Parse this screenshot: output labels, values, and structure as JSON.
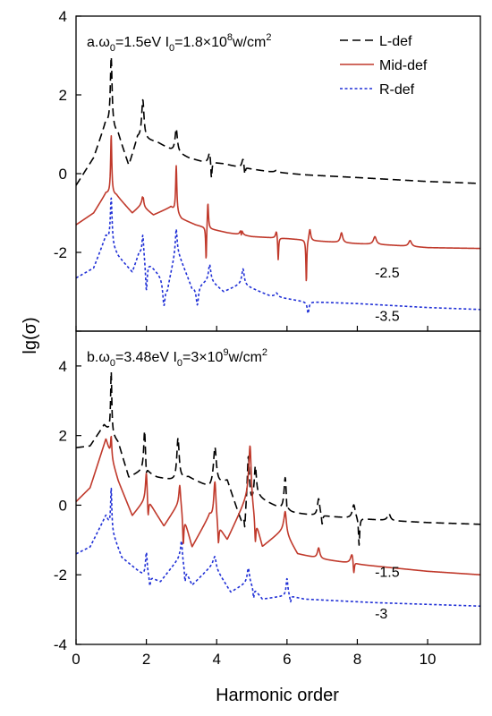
{
  "chart_data": {
    "type": "line",
    "xlabel": "Harmonic order",
    "ylabel": "lg(σ)",
    "xlim": [
      0,
      11.5
    ],
    "xticks": [
      0,
      2,
      4,
      6,
      8,
      10
    ],
    "xtick_labels": [
      "0",
      "2",
      "4",
      "6",
      "8",
      "10"
    ],
    "legend_placement": "top-right",
    "grid": false,
    "legend": [
      {
        "name": "L-def",
        "color": "#000000",
        "dash": "dashed"
      },
      {
        "name": "Mid-def",
        "color": "#c0392b",
        "dash": "solid"
      },
      {
        "name": "R-def",
        "color": "#1f2fd6",
        "dash": "dotted"
      }
    ],
    "panels": [
      {
        "label": "a.ω₀=1.5eV I₀=1.8×10⁸w/cm²",
        "title_parts": {
          "pre": "a.ω",
          "sub1": "0",
          "mid1": "=1.5eV I",
          "sub2": "0",
          "mid2": "=1.8×10",
          "sup1": "8",
          "mid3": "w/cm",
          "sup2": "2"
        },
        "ylim": [
          -4,
          4
        ],
        "yticks": [
          -4,
          -2,
          0,
          2,
          4
        ],
        "ytick_labels": [
          "-4",
          "-2",
          "0",
          "2",
          "4"
        ],
        "offset_labels": [
          {
            "text": "-2.5",
            "x": 8.5,
            "y": -2.5
          },
          {
            "text": "-3.5",
            "x": 8.5,
            "y": -3.6
          }
        ],
        "series": [
          {
            "name": "L-def",
            "baseline": [
              [
                0,
                -0.3
              ],
              [
                0.5,
                0.4
              ],
              [
                0.85,
                1.3
              ],
              [
                1.2,
                1.0
              ],
              [
                1.5,
                0.2
              ],
              [
                1.75,
                0.9
              ],
              [
                2.3,
                0.8
              ],
              [
                2.7,
                0.6
              ],
              [
                3.2,
                0.4
              ],
              [
                3.6,
                0.3
              ],
              [
                4.2,
                0.25
              ],
              [
                4.7,
                0.15
              ],
              [
                5.5,
                0.05
              ],
              [
                6.5,
                -0.03
              ],
              [
                8.0,
                -0.1
              ],
              [
                10.0,
                -0.2
              ],
              [
                11.5,
                -0.25
              ]
            ],
            "peaks": [
              [
                1.0,
                1.8,
                0.03
              ],
              [
                1.9,
                1.0,
                0.04
              ],
              [
                2.85,
                0.6,
                0.04
              ],
              [
                3.8,
                0.3,
                0.04
              ],
              [
                4.75,
                0.25,
                0.04
              ],
              [
                5.7,
                0.05,
                0.05
              ]
            ],
            "dips": [
              [
                3.85,
                -0.5,
                0.02
              ],
              [
                4.8,
                -0.25,
                0.02
              ]
            ]
          },
          {
            "name": "Mid-def",
            "baseline": [
              [
                0,
                -1.3
              ],
              [
                0.5,
                -1.0
              ],
              [
                0.85,
                -0.5
              ],
              [
                1.15,
                -0.55
              ],
              [
                1.6,
                -1.0
              ],
              [
                1.85,
                -0.8
              ],
              [
                2.2,
                -1.05
              ],
              [
                2.7,
                -0.85
              ],
              [
                3.0,
                -1.15
              ],
              [
                3.4,
                -1.3
              ],
              [
                3.8,
                -1.4
              ],
              [
                4.3,
                -1.5
              ],
              [
                5.0,
                -1.6
              ],
              [
                6.0,
                -1.65
              ],
              [
                7.0,
                -1.72
              ],
              [
                8.0,
                -1.78
              ],
              [
                9.0,
                -1.82
              ],
              [
                10.0,
                -1.88
              ],
              [
                11.5,
                -1.9
              ]
            ],
            "peaks": [
              [
                1.0,
                1.5,
                0.02
              ],
              [
                1.9,
                0.9,
                0.02
              ],
              [
                2.85,
                1.2,
                0.02
              ],
              [
                3.75,
                0.7,
                0.02
              ],
              [
                4.7,
                0.3,
                0.03
              ],
              [
                5.7,
                0.2,
                0.03
              ],
              [
                6.65,
                0.3,
                0.03
              ],
              [
                7.55,
                0.25,
                0.04
              ],
              [
                8.5,
                0.2,
                0.05
              ],
              [
                9.5,
                0.15,
                0.05
              ]
            ],
            "dips": [
              [
                1.9,
                -0.7,
                0.015
              ],
              [
                3.7,
                -0.9,
                0.015
              ],
              [
                5.75,
                -0.6,
                0.015
              ],
              [
                6.55,
                -1.1,
                0.015
              ],
              [
                4.7,
                -0.3,
                0.015
              ]
            ]
          },
          {
            "name": "R-def",
            "baseline": [
              [
                0,
                -2.65
              ],
              [
                0.5,
                -2.4
              ],
              [
                0.85,
                -1.6
              ],
              [
                1.2,
                -2.1
              ],
              [
                1.6,
                -2.5
              ],
              [
                1.8,
                -2.0
              ],
              [
                2.4,
                -2.6
              ],
              [
                2.6,
                -2.9
              ],
              [
                2.85,
                -1.9
              ],
              [
                3.3,
                -2.9
              ],
              [
                3.8,
                -2.7
              ],
              [
                4.2,
                -3.0
              ],
              [
                4.7,
                -2.8
              ],
              [
                5.5,
                -3.1
              ],
              [
                6.5,
                -3.25
              ],
              [
                8.0,
                -3.3
              ],
              [
                10.0,
                -3.4
              ],
              [
                11.5,
                -3.45
              ]
            ],
            "peaks": [
              [
                1.0,
                1.2,
                0.03
              ],
              [
                1.9,
                0.6,
                0.03
              ],
              [
                2.85,
                0.5,
                0.03
              ],
              [
                3.8,
                0.4,
                0.04
              ],
              [
                4.75,
                0.4,
                0.04
              ],
              [
                5.7,
                0.1,
                0.05
              ]
            ],
            "dips": [
              [
                2.0,
                -0.8,
                0.03
              ],
              [
                2.5,
                -0.6,
                0.04
              ],
              [
                3.45,
                -0.5,
                0.04
              ],
              [
                6.6,
                -0.3,
                0.03
              ]
            ]
          }
        ]
      },
      {
        "label": "b.ω₀=3.48eV I₀=3×10⁹w/cm²",
        "title_parts": {
          "pre": "b.ω",
          "sub1": "0",
          "mid1": "=3.48eV I",
          "sub2": "0",
          "mid2": "=3×10",
          "sup1": "9",
          "mid3": "w/cm",
          "sup2": "2"
        },
        "ylim": [
          -4,
          5
        ],
        "yticks": [
          -4,
          -2,
          0,
          2,
          4
        ],
        "ytick_labels": [
          "-4",
          "-2",
          "0",
          "2",
          "4"
        ],
        "offset_labels": [
          {
            "text": "-1.5",
            "x": 8.5,
            "y": -1.9
          },
          {
            "text": "-3",
            "x": 8.5,
            "y": -3.1
          }
        ],
        "series": [
          {
            "name": "L-def",
            "baseline": [
              [
                0,
                1.65
              ],
              [
                0.4,
                1.7
              ],
              [
                0.8,
                2.3
              ],
              [
                1.2,
                1.8
              ],
              [
                1.5,
                0.8
              ],
              [
                1.9,
                1.0
              ],
              [
                2.3,
                0.8
              ],
              [
                2.8,
                0.7
              ],
              [
                3.2,
                0.8
              ],
              [
                3.8,
                0.5
              ],
              [
                4.3,
                0.7
              ],
              [
                4.7,
                -0.5
              ],
              [
                5.2,
                0.2
              ],
              [
                6.0,
                -0.2
              ],
              [
                6.8,
                -0.3
              ],
              [
                7.5,
                -0.35
              ],
              [
                8.2,
                -0.4
              ],
              [
                9.0,
                -0.45
              ],
              [
                10.0,
                -0.5
              ],
              [
                11.5,
                -0.55
              ]
            ],
            "peaks": [
              [
                1.0,
                1.8,
                0.02
              ],
              [
                1.95,
                1.2,
                0.03
              ],
              [
                2.9,
                1.2,
                0.04
              ],
              [
                3.95,
                1.1,
                0.05
              ],
              [
                4.9,
                1.6,
                0.04
              ],
              [
                5.1,
                1.0,
                0.04
              ],
              [
                5.95,
                1.0,
                0.04
              ],
              [
                6.9,
                0.5,
                0.04
              ],
              [
                7.9,
                0.4,
                0.05
              ],
              [
                8.9,
                0.2,
                0.05
              ]
            ],
            "dips": [
              [
                2.0,
                -0.3,
                0.02
              ],
              [
                4.8,
                -0.5,
                0.02
              ],
              [
                6.0,
                -0.3,
                0.02
              ],
              [
                7.0,
                -0.3,
                0.02
              ],
              [
                8.05,
                -0.8,
                0.02
              ]
            ]
          },
          {
            "name": "Mid-def",
            "baseline": [
              [
                0,
                0.1
              ],
              [
                0.4,
                0.5
              ],
              [
                0.85,
                1.9
              ],
              [
                1.2,
                0.7
              ],
              [
                1.6,
                -0.3
              ],
              [
                2.0,
                0.2
              ],
              [
                2.5,
                -0.6
              ],
              [
                2.95,
                0.1
              ],
              [
                3.3,
                -1.2
              ],
              [
                3.8,
                -0.3
              ],
              [
                4.3,
                -1.0
              ],
              [
                4.9,
                0.3
              ],
              [
                5.3,
                -1.2
              ],
              [
                5.9,
                -0.7
              ],
              [
                6.3,
                -1.4
              ],
              [
                7.0,
                -1.55
              ],
              [
                8.0,
                -1.7
              ],
              [
                9.0,
                -1.8
              ],
              [
                10.0,
                -1.9
              ],
              [
                11.5,
                -2.0
              ]
            ],
            "peaks": [
              [
                1.0,
                0.6,
                0.02
              ],
              [
                2.0,
                0.8,
                0.03
              ],
              [
                2.95,
                0.5,
                0.03
              ],
              [
                3.95,
                1.2,
                0.04
              ],
              [
                4.95,
                1.6,
                0.04
              ],
              [
                5.95,
                0.6,
                0.04
              ],
              [
                6.9,
                0.3,
                0.04
              ],
              [
                7.85,
                0.3,
                0.05
              ]
            ],
            "dips": [
              [
                2.05,
                -0.6,
                0.02
              ],
              [
                3.05,
                -0.9,
                0.02
              ],
              [
                4.05,
                -0.6,
                0.02
              ],
              [
                5.1,
                -0.7,
                0.02
              ],
              [
                7.9,
                -0.4,
                0.02
              ]
            ]
          },
          {
            "name": "R-def",
            "baseline": [
              [
                0,
                -1.4
              ],
              [
                0.4,
                -1.2
              ],
              [
                0.85,
                -0.3
              ],
              [
                1.3,
                -1.5
              ],
              [
                1.9,
                -2.0
              ],
              [
                2.4,
                -2.2
              ],
              [
                2.95,
                -1.5
              ],
              [
                3.3,
                -2.3
              ],
              [
                3.9,
                -1.7
              ],
              [
                4.4,
                -2.5
              ],
              [
                4.9,
                -2.2
              ],
              [
                5.3,
                -2.7
              ],
              [
                6.0,
                -2.6
              ],
              [
                6.5,
                -2.7
              ],
              [
                7.5,
                -2.75
              ],
              [
                8.5,
                -2.8
              ],
              [
                10.0,
                -2.85
              ],
              [
                11.5,
                -2.9
              ]
            ],
            "peaks": [
              [
                1.0,
                1.2,
                0.02
              ],
              [
                2.0,
                0.7,
                0.03
              ],
              [
                3.0,
                0.6,
                0.03
              ],
              [
                3.95,
                0.3,
                0.04
              ],
              [
                4.9,
                0.4,
                0.04
              ],
              [
                6.0,
                0.5,
                0.03
              ]
            ],
            "dips": [
              [
                2.1,
                -0.3,
                0.02
              ],
              [
                3.1,
                -0.4,
                0.02
              ],
              [
                5.05,
                -0.3,
                0.02
              ],
              [
                6.1,
                -0.2,
                0.02
              ]
            ]
          }
        ]
      }
    ]
  }
}
